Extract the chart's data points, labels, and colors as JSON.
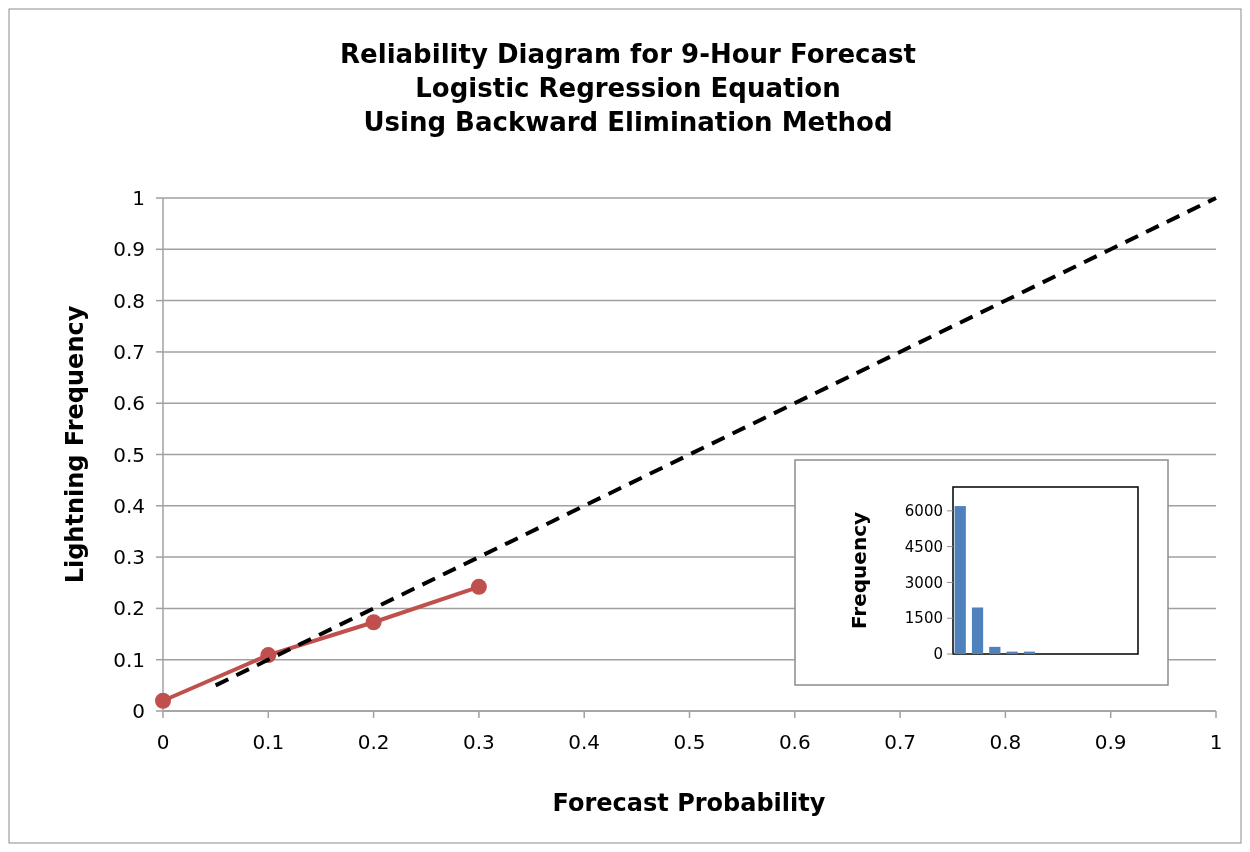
{
  "chart_data": [
    {
      "type": "line",
      "title": "Reliability Diagram for 9-Hour Forecast\nLogistic Regression Equation\nUsing Backward Elimination Method",
      "xlabel": "Forecast Probability",
      "ylabel": "Lightning Frequency",
      "xlim": [
        0,
        1
      ],
      "ylim": [
        0,
        1
      ],
      "xticks": [
        0,
        0.1,
        0.2,
        0.3,
        0.4,
        0.5,
        0.6,
        0.7,
        0.8,
        0.9,
        1
      ],
      "yticks": [
        0,
        0.1,
        0.2,
        0.3,
        0.4,
        0.5,
        0.6,
        0.7,
        0.8,
        0.9,
        1
      ],
      "grid": "y",
      "series": [
        {
          "color": "#c0504d",
          "x": [
            0,
            0.1,
            0.2,
            0.3
          ],
          "values": [
            0.02,
            0.109,
            0.173,
            0.242
          ],
          "marker": "circle",
          "line_style": "solid"
        },
        {
          "color": "#000000",
          "x": [
            0.05,
            1
          ],
          "values": [
            0.05,
            1
          ],
          "marker": "none",
          "line_style": "dashed"
        }
      ]
    },
    {
      "type": "bar",
      "ylabel": "Frequency",
      "categories": [
        null,
        null,
        null,
        null,
        null
      ],
      "values": [
        6200,
        1950,
        300,
        100,
        100
      ],
      "color": "#4f81bd",
      "ylim": [
        0,
        7000
      ],
      "yticks": [
        0,
        1500,
        3000,
        4500,
        6000
      ]
    }
  ]
}
